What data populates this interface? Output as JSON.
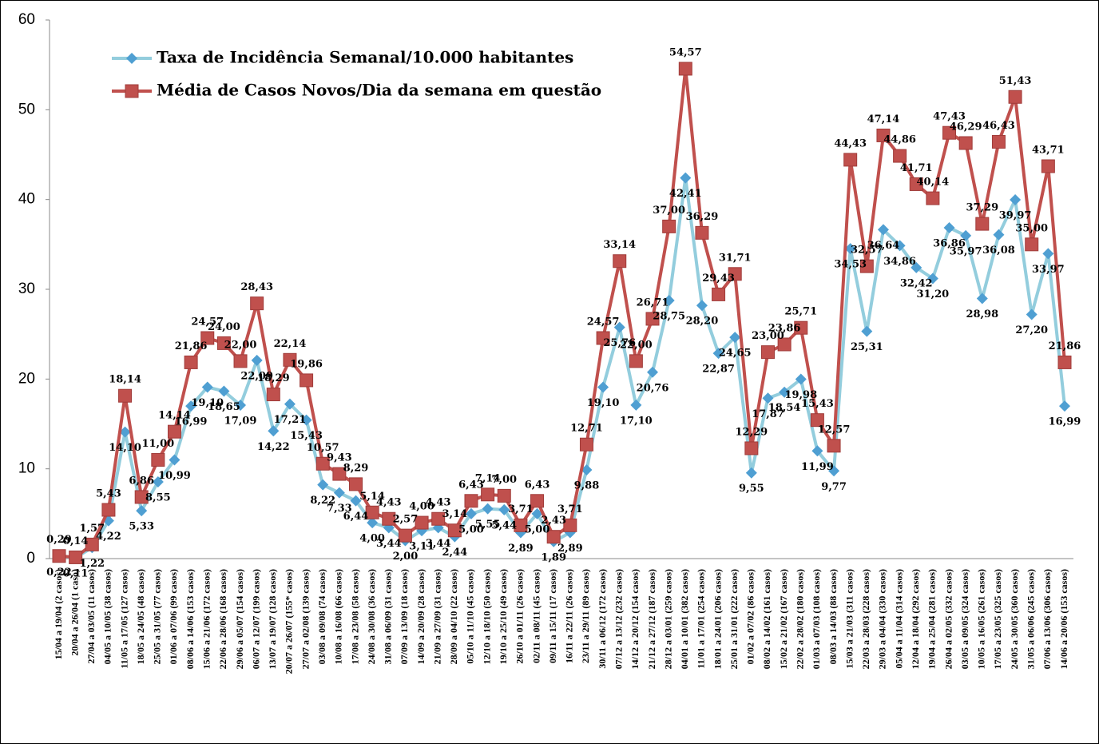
{
  "chart_data": {
    "type": "line",
    "categories": [
      "15/04 a 19/04 (2 casos)",
      "20/04 a 26/04 (1 caso)",
      "27/04 a 03/05 (11 casos)",
      "04/05 a 10/05 (38 casos)",
      "11/05 a 17/05 (127 casos)",
      "18/05 a 24/05 (48 casos)",
      "25/05 a 31/05 (77 casos)",
      "01/06 a 07/06 (99 casos)",
      "08/06 a 14/06 (153 casos)",
      "15/06 a 21/06 (172 casos)",
      "22/06 a 28/06 (168 casos)",
      "29/06 a 05/07 (154 casos)",
      "06/07 a 12/07 (199 casos)",
      "13/07 a 19/07 (128 casos)",
      "20/07 a 26/07 (155* casos)",
      "27/07 a 02/08 (139 casos)",
      "03/08 a 09/08 (74 casos)",
      "10/08 a 16/08 (66 casos)",
      "17/08 a 23/08 (58 casos)",
      "24/08 a 30/08 (36 casos)",
      "31/08 a 06/09 (31 casos)",
      "07/09 a 13/09 (18 casos)",
      "14/09 a 20/09 (28 casos)",
      "21/09 a 27/09 (31 casos)",
      "28/09 a 04/10 (22 casos)",
      "05/10 a 11/10 (45 casos)",
      "12/10 a 18/10 (50 casos)",
      "19/10 a 25/10 (49 casos)",
      "26/10 a 01/11 (26 casos)",
      "02/11 a 08/11 (45 casos)",
      "09/11 a 15/11 (17 casos)",
      "16/11 a 22/11 (26 casos)",
      "23/11 a 29/11 (89 casos)",
      "30/11 a 06/12 (172 casos)",
      "07/12 a 13/12 (232 casos)",
      "14/12 a 20/12 (154 casos)",
      "21/12 a 27/12 (187 casos)",
      "28/12 a 03/01 (259 casos)",
      "04/01 a 10/01 (382 casos)",
      "11/01 a 17/01 (254 casos)",
      "18/01 a 24/01 (206 casos)",
      "25/01 a 31/01 (222 casos)",
      "01/02 a 07/02 (86 casos)",
      "08/02 a 14/02 (161 casos)",
      "15/02 a 21/02 (167 casos)",
      "22/02 a 28/02 (180 casos)",
      "01/03 a 07/03 (108 casos)",
      "08/03 a 14/03 (88 casos)",
      "15/03 a 21/03 (311 casos)",
      "22/03 a 28/03 (228 casos)",
      "29/03 a 04/04 (330 casos)",
      "05/04 a 11/04 (314 casos)",
      "12/04 a 18/04 (292 casos)",
      "19/04 a 25/04 (281 casos)",
      "26/04 a 02/05 (332 casos)",
      "03/05 a 09/05 (324 casos)",
      "10/05 a 16/05 (261 casos)",
      "17/05 a 23/05 (325 casos)",
      "24/05 a 30/05 (360 casos)",
      "31/05 a 06/06 (245 casos)",
      "07/06 a 13/06 (306 casos)",
      "14/06 a 20/06 (153 casos)"
    ],
    "series": [
      {
        "name": "Taxa de Incidência Semanal/10.000 habitantes",
        "color": "#93cddd",
        "marker_color": "#4f9fd2",
        "marker": "diamond",
        "values": [
          0.22,
          0.11,
          1.22,
          4.22,
          14.1,
          5.33,
          8.55,
          10.99,
          16.99,
          19.1,
          18.65,
          17.09,
          22.09,
          14.22,
          17.21,
          15.43,
          8.22,
          7.33,
          6.44,
          4,
          3.44,
          2,
          3.11,
          3.44,
          2.44,
          5,
          5.55,
          5.44,
          2.89,
          5,
          1.89,
          2.89,
          9.88,
          19.1,
          25.76,
          17.1,
          20.76,
          28.75,
          42.41,
          28.2,
          22.87,
          24.65,
          9.55,
          17.87,
          18.54,
          19.98,
          11.99,
          9.77,
          34.53,
          25.31,
          36.64,
          34.86,
          32.42,
          31.2,
          36.86,
          35.97,
          28.98,
          36.08,
          39.97,
          27.2,
          33.97,
          16.99
        ],
        "value_labels": [
          "0,22",
          "0,11",
          "1,22",
          "4,22",
          "14,10",
          "5,33",
          "8,55",
          "10,99",
          "16,99",
          "19,10",
          "18,65",
          "17,09",
          "22,09",
          "14,22",
          "17,21",
          "15,43",
          "8,22",
          "7,33",
          "6,44",
          "4,00",
          "3,44",
          "2,00",
          "3,11",
          "3,44",
          "2,44",
          "5,00",
          "5,55",
          "5,44",
          "2,89",
          "5,00",
          "1,89",
          "2,89",
          "9,88",
          "19,10",
          "25,76",
          "17,10",
          "20,76",
          "28,75",
          "42,41",
          "28,20",
          "22,87",
          "24,65",
          "9,55",
          "17,87",
          "18,54",
          "19,98",
          "11,99",
          "9,77",
          "34,53",
          "25,31",
          "36,64",
          "34,86",
          "32,42",
          "31,20",
          "36,86",
          "35,97",
          "28,98",
          "36,08",
          "39,97",
          "27,20",
          "33,97",
          "16,99"
        ]
      },
      {
        "name": "Média de Casos Novos/Dia da semana em questão",
        "color": "#c0504d",
        "marker_color": "#c0504d",
        "marker": "square",
        "values": [
          0.29,
          0.14,
          1.57,
          5.43,
          18.14,
          6.86,
          11,
          14.14,
          21.86,
          24.57,
          24,
          22,
          28.43,
          18.29,
          22.14,
          19.86,
          10.57,
          9.43,
          8.29,
          5.14,
          4.43,
          2.57,
          4,
          4.43,
          3.14,
          6.43,
          7.14,
          7,
          3.71,
          6.43,
          2.43,
          3.71,
          12.71,
          24.57,
          33.14,
          22,
          26.71,
          37,
          54.57,
          36.29,
          29.43,
          31.71,
          12.29,
          23,
          23.86,
          25.71,
          15.43,
          12.57,
          44.43,
          32.57,
          47.14,
          44.86,
          41.71,
          40.14,
          47.43,
          46.29,
          37.29,
          46.43,
          51.43,
          35,
          43.71,
          21.86
        ],
        "value_labels": [
          "0,29",
          "0,14",
          "1,57",
          "5,43",
          "18,14",
          "6,86",
          "11,00",
          "14,14",
          "21,86",
          "24,57",
          "24,00",
          "22,00",
          "28,43",
          "18,29",
          "22,14",
          "19,86",
          "10,57",
          "9,43",
          "8,29",
          "5,14",
          "4,43",
          "2,57",
          "4,00",
          "4,43",
          "3,14",
          "6,43",
          "7,14",
          "7,00",
          "3,71",
          "6,43",
          "2,43",
          "3,71",
          "12,71",
          "24,57",
          "33,14",
          "22,00",
          "26,71",
          "37,00",
          "54,57",
          "36,29",
          "29,43",
          "31,71",
          "12,29",
          "23,00",
          "23,86",
          "25,71",
          "15,43",
          "12,57",
          "44,43",
          "32,57",
          "47,14",
          "44,86",
          "41,71",
          "40,14",
          "47,43",
          "46,29",
          "37,29",
          "46,43",
          "51,43",
          "35,00",
          "43,71",
          "21,86"
        ]
      }
    ],
    "ylim": [
      0,
      60
    ],
    "yticks": [
      0,
      10,
      20,
      30,
      40,
      50,
      60
    ],
    "grid": false,
    "legend": "upper left"
  }
}
